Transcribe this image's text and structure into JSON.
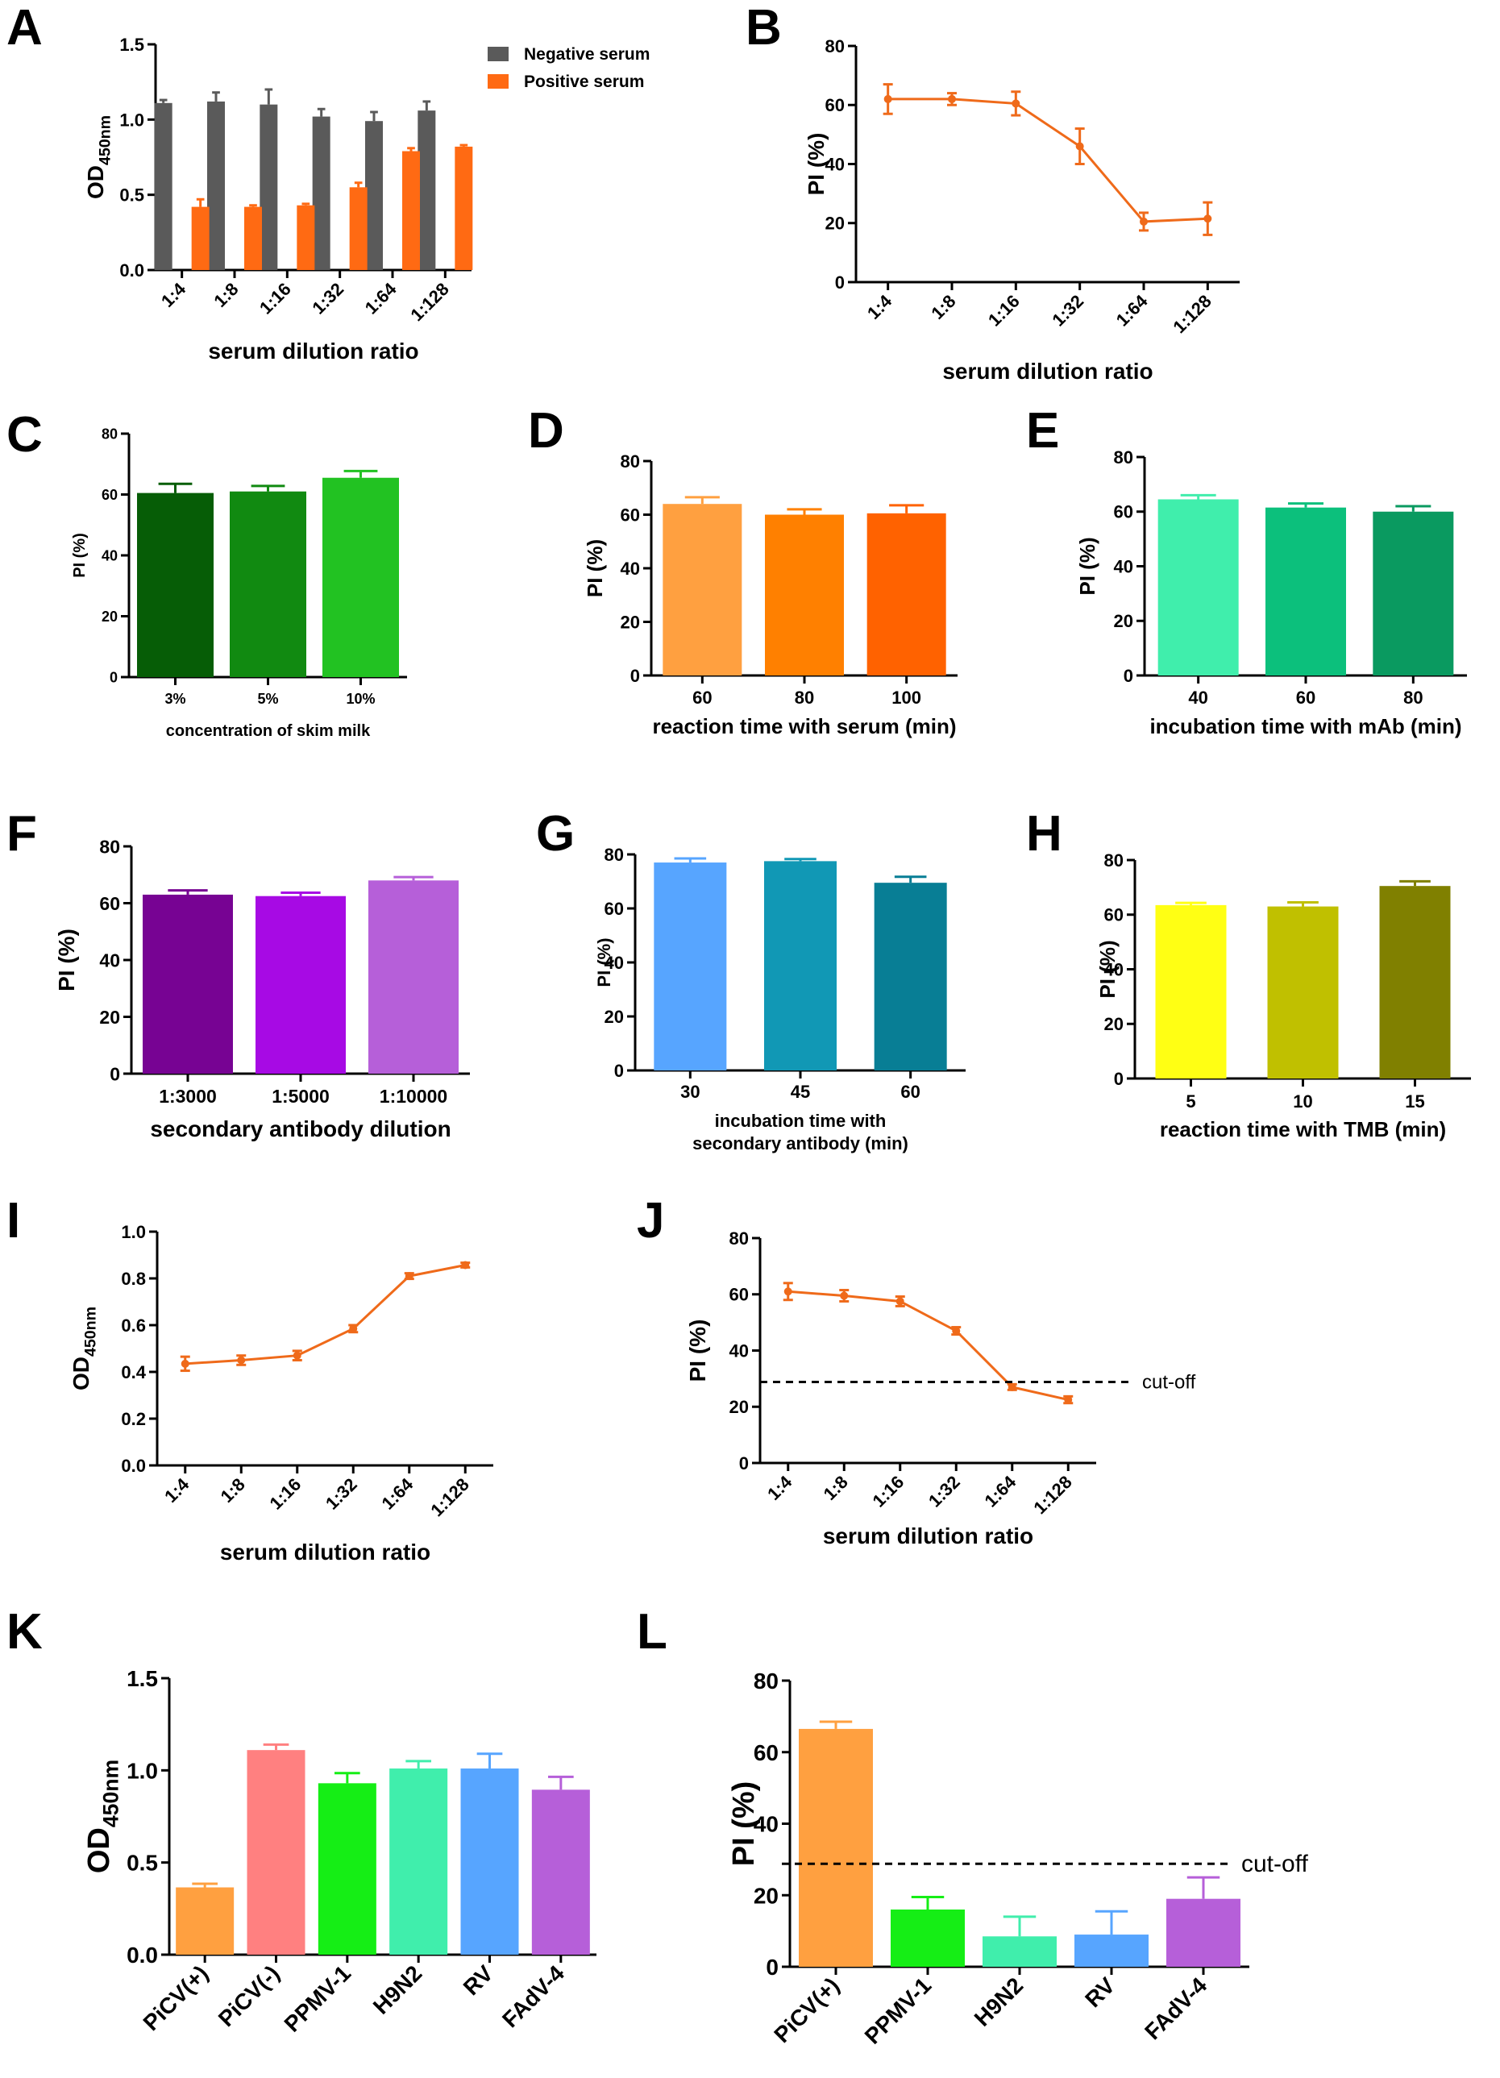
{
  "figure": {
    "panels": [
      {
        "label": "A",
        "chart_data": {
          "type": "bar",
          "categories": [
            "1:4",
            "1:8",
            "1:16",
            "1:32",
            "1:64",
            "1:128"
          ],
          "series": [
            {
              "name": "Negative serum",
              "color": "#5a5a5a",
              "values": [
                1.11,
                1.12,
                1.1,
                1.02,
                0.99,
                1.06
              ],
              "errors": [
                0.02,
                0.06,
                0.1,
                0.05,
                0.06,
                0.06
              ]
            },
            {
              "name": "Positive serum",
              "color": "#ff6a13",
              "values": [
                0.42,
                0.42,
                0.43,
                0.55,
                0.79,
                0.82
              ],
              "errors": [
                0.05,
                0.01,
                0.01,
                0.03,
                0.02,
                0.01
              ]
            }
          ],
          "ylim": [
            0,
            1.5
          ],
          "yticks": [
            "0.0",
            "0.5",
            "1.0",
            "1.5"
          ],
          "ylabel": "OD",
          "ylabel_sub": "450nm",
          "xlabel": "serum dilution ratio",
          "legend": "top-right"
        }
      },
      {
        "label": "B",
        "chart_data": {
          "type": "line",
          "categories": [
            "1:4",
            "1:8",
            "1:16",
            "1:32",
            "1:64",
            "1:128"
          ],
          "series": [
            {
              "name": "PI",
              "color": "#ef6a1a",
              "values": [
                62,
                62,
                60.5,
                46,
                20.5,
                21.5
              ],
              "errors": [
                5,
                2,
                4,
                6,
                3,
                5.5
              ]
            }
          ],
          "ylim": [
            0,
            80
          ],
          "yticks": [
            "0",
            "20",
            "40",
            "60",
            "80"
          ],
          "ylabel": "PI (%)",
          "xlabel": "serum dilution ratio"
        }
      },
      {
        "label": "C",
        "chart_data": {
          "type": "bar",
          "categories": [
            "3%",
            "5%",
            "10%"
          ],
          "series": [
            {
              "name": "PI",
              "colors": [
                "#065d06",
                "#118a11",
                "#22c222"
              ],
              "values": [
                60.5,
                61,
                65.5
              ],
              "errors": [
                3,
                1.8,
                2.2
              ]
            }
          ],
          "ylim": [
            0,
            80
          ],
          "yticks": [
            "0",
            "20",
            "40",
            "60",
            "80"
          ],
          "ylabel": "PI (%)",
          "xlabel": "concentration of skim milk"
        }
      },
      {
        "label": "D",
        "chart_data": {
          "type": "bar",
          "categories": [
            "60",
            "80",
            "100"
          ],
          "series": [
            {
              "name": "PI",
              "colors": [
                "#ffa040",
                "#ff8000",
                "#ff6200"
              ],
              "values": [
                64,
                60,
                60.5
              ],
              "errors": [
                2.5,
                2,
                3
              ]
            }
          ],
          "ylim": [
            0,
            80
          ],
          "yticks": [
            "0",
            "20",
            "40",
            "60",
            "80"
          ],
          "ylabel": "PI (%)",
          "xlabel": "reaction time with serum (min)"
        }
      },
      {
        "label": "E",
        "chart_data": {
          "type": "bar",
          "categories": [
            "40",
            "60",
            "80"
          ],
          "series": [
            {
              "name": "PI",
              "colors": [
                "#40eeac",
                "#0cc07c",
                "#0a9a60"
              ],
              "values": [
                64.5,
                61.5,
                60
              ],
              "errors": [
                1.5,
                1.5,
                2
              ]
            }
          ],
          "ylim": [
            0,
            80
          ],
          "yticks": [
            "0",
            "20",
            "40",
            "60",
            "80"
          ],
          "ylabel": "PI (%)",
          "xlabel": "incubation time with mAb (min)"
        }
      },
      {
        "label": "F",
        "chart_data": {
          "type": "bar",
          "categories": [
            "1:3000",
            "1:5000",
            "1:10000"
          ],
          "series": [
            {
              "name": "PI",
              "colors": [
                "#770393",
                "#a70ae4",
                "#b65fd9"
              ],
              "values": [
                63,
                62.5,
                68
              ],
              "errors": [
                1.5,
                1.2,
                1.2
              ]
            }
          ],
          "ylim": [
            0,
            80
          ],
          "yticks": [
            "0",
            "20",
            "40",
            "60",
            "80"
          ],
          "ylabel": "PI (%)",
          "xlabel": "secondary antibody dilution"
        }
      },
      {
        "label": "G",
        "chart_data": {
          "type": "bar",
          "categories": [
            "30",
            "45",
            "60"
          ],
          "series": [
            {
              "name": "PI",
              "colors": [
                "#57a5ff",
                "#1198b5",
                "#087e95"
              ],
              "values": [
                77,
                77.5,
                69.5
              ],
              "errors": [
                1.5,
                0.8,
                2.2
              ]
            }
          ],
          "ylim": [
            0,
            80
          ],
          "yticks": [
            "0",
            "20",
            "40",
            "60",
            "80"
          ],
          "ylabel": "PI (%)",
          "xlabel": "incubation time with",
          "xlabel_line2": "secondary antibody (min)"
        }
      },
      {
        "label": "H",
        "chart_data": {
          "type": "bar",
          "categories": [
            "5",
            "10",
            "15"
          ],
          "series": [
            {
              "name": "PI",
              "colors": [
                "#ffff14",
                "#c0c000",
                "#808000"
              ],
              "values": [
                63.5,
                63,
                70.5
              ],
              "errors": [
                0.8,
                1.5,
                1.7
              ]
            }
          ],
          "ylim": [
            0,
            80
          ],
          "yticks": [
            "0",
            "20",
            "40",
            "60",
            "80"
          ],
          "ylabel": "PI (%)",
          "xlabel": "reaction time with TMB (min)"
        }
      },
      {
        "label": "I",
        "chart_data": {
          "type": "line",
          "categories": [
            "1:4",
            "1:8",
            "1:16",
            "1:32",
            "1:64",
            "1:128"
          ],
          "series": [
            {
              "name": "OD450nm",
              "color": "#ef6a1a",
              "values": [
                0.435,
                0.45,
                0.47,
                0.585,
                0.81,
                0.857
              ],
              "errors": [
                0.03,
                0.02,
                0.02,
                0.015,
                0.012,
                0.01
              ]
            }
          ],
          "ylim": [
            0,
            1.0
          ],
          "yticks": [
            "0.0",
            "0.2",
            "0.4",
            "0.6",
            "0.8",
            "1.0"
          ],
          "ylabel": "OD",
          "ylabel_sub": "450nm",
          "xlabel": "serum dilution ratio"
        }
      },
      {
        "label": "J",
        "chart_data": {
          "type": "line",
          "categories": [
            "1:4",
            "1:8",
            "1:16",
            "1:32",
            "1:64",
            "1:128"
          ],
          "series": [
            {
              "name": "PI",
              "color": "#ef6a1a",
              "values": [
                61,
                59.5,
                57.5,
                47,
                27,
                22.5
              ],
              "errors": [
                3,
                2,
                1.7,
                1.3,
                1,
                1.2
              ]
            }
          ],
          "ylim": [
            0,
            80
          ],
          "yticks": [
            "0",
            "20",
            "40",
            "60",
            "80"
          ],
          "ylabel": "PI (%)",
          "xlabel": "serum dilution ratio",
          "cutoff": {
            "value": 28.8,
            "label": "cut-off"
          }
        }
      },
      {
        "label": "K",
        "chart_data": {
          "type": "bar",
          "categories": [
            "PiCV(+)",
            "PiCV(-)",
            "PPMV-1",
            "H9N2",
            "RV",
            "FAdV-4"
          ],
          "series": [
            {
              "name": "OD450nm",
              "colors": [
                "#ffa040",
                "#ff8080",
                "#15ee15",
                "#40eeac",
                "#57a5ff",
                "#b65fd9"
              ],
              "values": [
                0.365,
                1.11,
                0.93,
                1.01,
                1.01,
                0.895
              ],
              "errors": [
                0.02,
                0.03,
                0.055,
                0.04,
                0.08,
                0.07
              ]
            }
          ],
          "ylim": [
            0,
            1.5
          ],
          "yticks": [
            "0.0",
            "0.5",
            "1.0",
            "1.5"
          ],
          "ylabel": "OD",
          "ylabel_sub": "450nm"
        }
      },
      {
        "label": "L",
        "chart_data": {
          "type": "bar",
          "categories": [
            "PiCV(+)",
            "PPMV-1",
            "H9N2",
            "RV",
            "FAdV-4"
          ],
          "series": [
            {
              "name": "PI",
              "colors": [
                "#ffa040",
                "#15ee15",
                "#40eeac",
                "#57a5ff",
                "#b65fd9"
              ],
              "values": [
                66.5,
                16,
                8.5,
                9,
                19
              ],
              "errors": [
                2,
                3.5,
                5.5,
                6.5,
                6
              ]
            }
          ],
          "ylim": [
            0,
            80
          ],
          "yticks": [
            "0",
            "20",
            "40",
            "60",
            "80"
          ],
          "ylabel": "PI (%)",
          "cutoff": {
            "value": 28.8,
            "label": "cut-off"
          }
        }
      }
    ]
  }
}
